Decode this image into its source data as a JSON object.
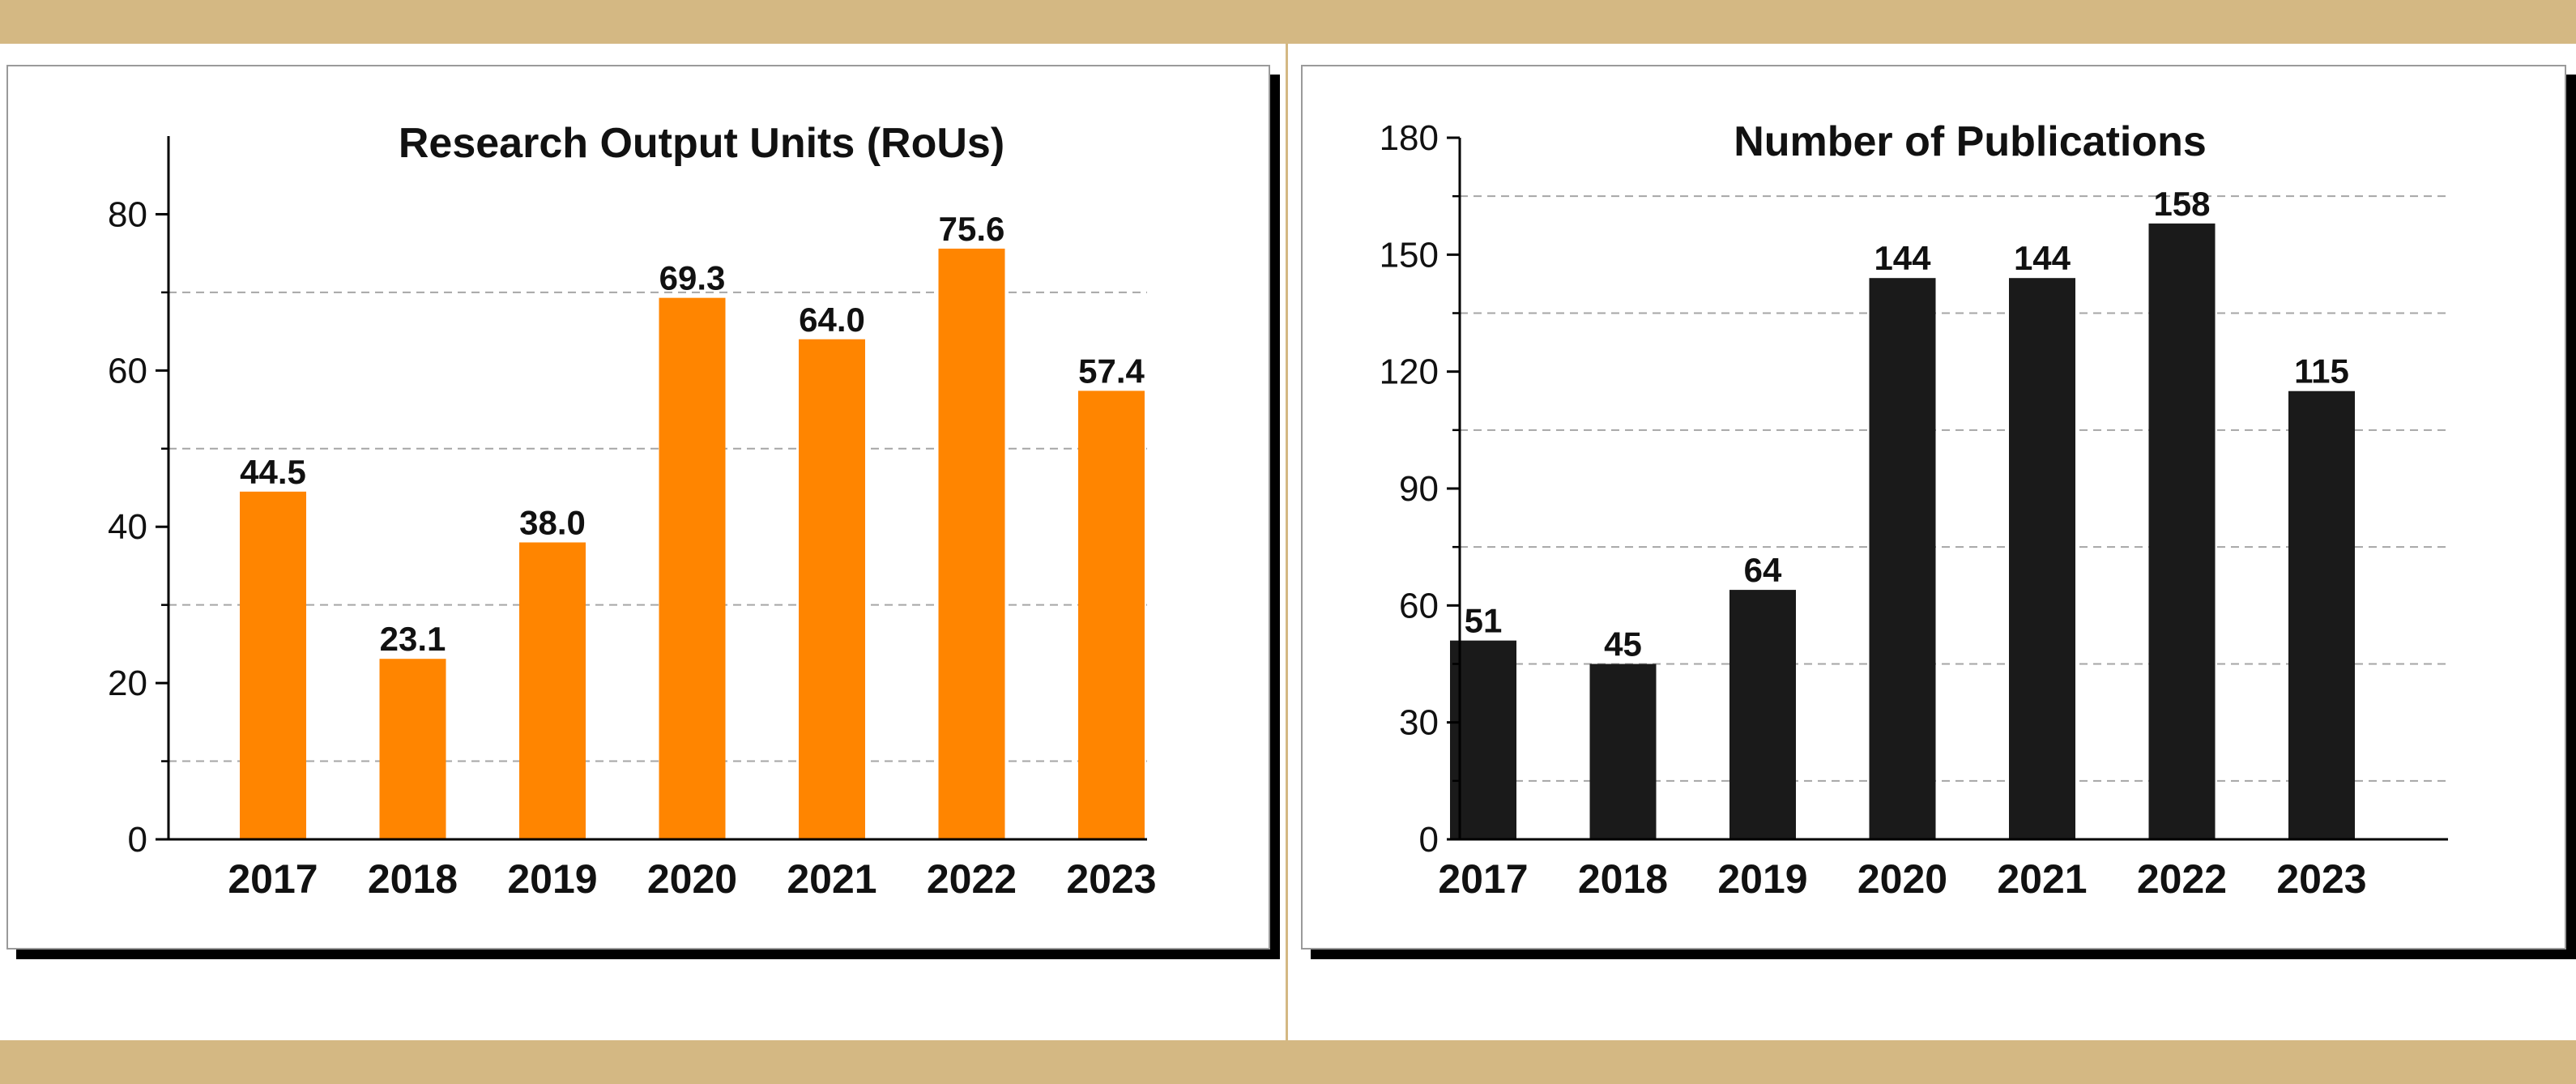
{
  "chart_data": [
    {
      "type": "bar",
      "title": "Research Output Units (RoUs)",
      "xlabel": "",
      "ylabel": "",
      "categories": [
        "2017",
        "2018",
        "2019",
        "2020",
        "2021",
        "2022",
        "2023"
      ],
      "values": [
        44.5,
        23.1,
        38.0,
        69.3,
        64.0,
        75.6,
        57.4
      ],
      "data_labels": [
        "44.5",
        "23.1",
        "38.0",
        "69.3",
        "64.0",
        "75.6",
        "57.4"
      ],
      "ylim": [
        0,
        90
      ],
      "yticks": [
        0,
        20,
        40,
        60,
        80
      ],
      "minor_yticks": [
        10,
        30,
        50,
        70
      ],
      "gridlines": [
        10,
        30,
        50,
        70
      ],
      "grid": true,
      "bar_color": "#ff8500"
    },
    {
      "type": "bar",
      "title": "Number of Publications",
      "xlabel": "",
      "ylabel": "",
      "categories": [
        "2017",
        "2018",
        "2019",
        "2020",
        "2021",
        "2022",
        "2023"
      ],
      "values": [
        51,
        45,
        64,
        144,
        144,
        158,
        115
      ],
      "data_labels": [
        "51",
        "45",
        "64",
        "144",
        "144",
        "158",
        "115"
      ],
      "ylim": [
        0,
        180
      ],
      "yticks": [
        0,
        30,
        60,
        90,
        120,
        150,
        180
      ],
      "minor_yticks": [
        15,
        45,
        75,
        105,
        135,
        165
      ],
      "gridlines": [
        15,
        45,
        75,
        105,
        135,
        165
      ],
      "grid": true,
      "bar_color": "#1a1a1a"
    }
  ],
  "colors": {
    "band": "#d4b883",
    "panel_shadow": "#000000",
    "grid": "#a6a6a6"
  }
}
